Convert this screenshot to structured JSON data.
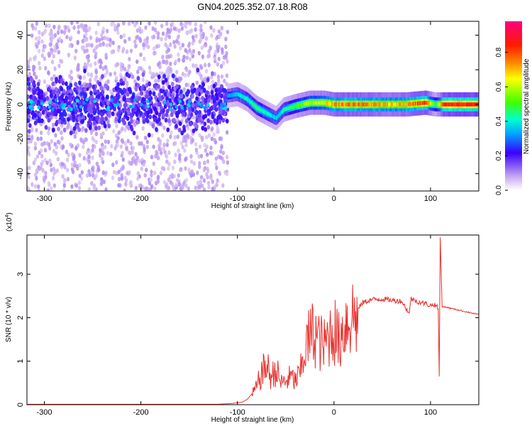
{
  "title": "GN04.2025.352.07.18.R08",
  "chart_data": [
    {
      "type": "heatmap",
      "name": "spectrogram",
      "xlabel": "Height of straight line (km)",
      "ylabel": "Frequency (Hz)",
      "xlim": [
        -318,
        150
      ],
      "ylim": [
        -50,
        48
      ],
      "xticks": [
        -300,
        -200,
        -100,
        0,
        100
      ],
      "yticks": [
        -40,
        -20,
        0,
        20,
        40
      ],
      "colorbar": {
        "label": "Normalized spectral amplitude",
        "range": [
          0,
          0.98
        ],
        "ticks": [
          0.0,
          0.2,
          0.4,
          0.6,
          0.8
        ]
      },
      "noise_region_x": [
        -318,
        -110
      ],
      "ridge": [
        {
          "x": -110,
          "f": 5,
          "amp": 0.35
        },
        {
          "x": -100,
          "f": 6,
          "amp": 0.4
        },
        {
          "x": -90,
          "f": 3,
          "amp": 0.45
        },
        {
          "x": -80,
          "f": -2,
          "amp": 0.5
        },
        {
          "x": -70,
          "f": -5,
          "amp": 0.45
        },
        {
          "x": -60,
          "f": -8,
          "amp": 0.4
        },
        {
          "x": -52,
          "f": -3,
          "amp": 0.45
        },
        {
          "x": -40,
          "f": -1,
          "amp": 0.55
        },
        {
          "x": -25,
          "f": 1,
          "amp": 0.65
        },
        {
          "x": -10,
          "f": 1,
          "amp": 0.7
        },
        {
          "x": 0,
          "f": 0,
          "amp": 0.8
        },
        {
          "x": 20,
          "f": 0,
          "amp": 0.85
        },
        {
          "x": 40,
          "f": 0,
          "amp": 0.8
        },
        {
          "x": 60,
          "f": 0,
          "amp": 0.75
        },
        {
          "x": 75,
          "f": 0,
          "amp": 0.8
        },
        {
          "x": 95,
          "f": 1,
          "amp": 0.9
        },
        {
          "x": 105,
          "f": 0,
          "amp": 0.5
        },
        {
          "x": 115,
          "f": 0,
          "amp": 0.95
        },
        {
          "x": 150,
          "f": 0,
          "amp": 0.95
        }
      ]
    },
    {
      "type": "line",
      "name": "snr",
      "xlabel": "Height of straight line (km)",
      "ylabel": "SNR (10 * v/v)",
      "yscale_label": "(x10",
      "yscale_exp": "4",
      "xlim": [
        -318,
        150
      ],
      "ylim": [
        0,
        3.9
      ],
      "xticks": [
        -300,
        -200,
        -100,
        0,
        100
      ],
      "yticks": [
        0,
        1,
        2,
        3
      ],
      "color": "#e8302c",
      "series": [
        {
          "name": "SNR",
          "x": [
            -318,
            -120,
            -105,
            -95,
            -90,
            -85,
            -80,
            -75,
            -70,
            -65,
            -60,
            -55,
            -50,
            -45,
            -40,
            -35,
            -30,
            -25,
            -20,
            -15,
            -10,
            -5,
            0,
            5,
            10,
            15,
            20,
            25,
            30,
            40,
            50,
            60,
            70,
            78,
            80,
            85,
            90,
            95,
            100,
            105,
            108,
            109,
            110,
            112,
            115,
            120,
            130,
            140,
            150
          ],
          "y": [
            0.01,
            0.01,
            0.03,
            0.06,
            0.12,
            0.25,
            0.45,
            0.8,
            1.0,
            0.7,
            0.9,
            0.55,
            0.6,
            0.7,
            0.6,
            0.8,
            1.4,
            1.75,
            1.85,
            1.6,
            1.5,
            1.8,
            1.95,
            1.6,
            2.0,
            2.2,
            2.3,
            2.2,
            2.35,
            2.42,
            2.43,
            2.4,
            2.38,
            2.1,
            2.45,
            2.38,
            2.35,
            2.32,
            2.28,
            2.3,
            2.2,
            0.65,
            3.85,
            2.25,
            2.25,
            2.22,
            2.17,
            2.12,
            2.07
          ]
        }
      ]
    }
  ]
}
